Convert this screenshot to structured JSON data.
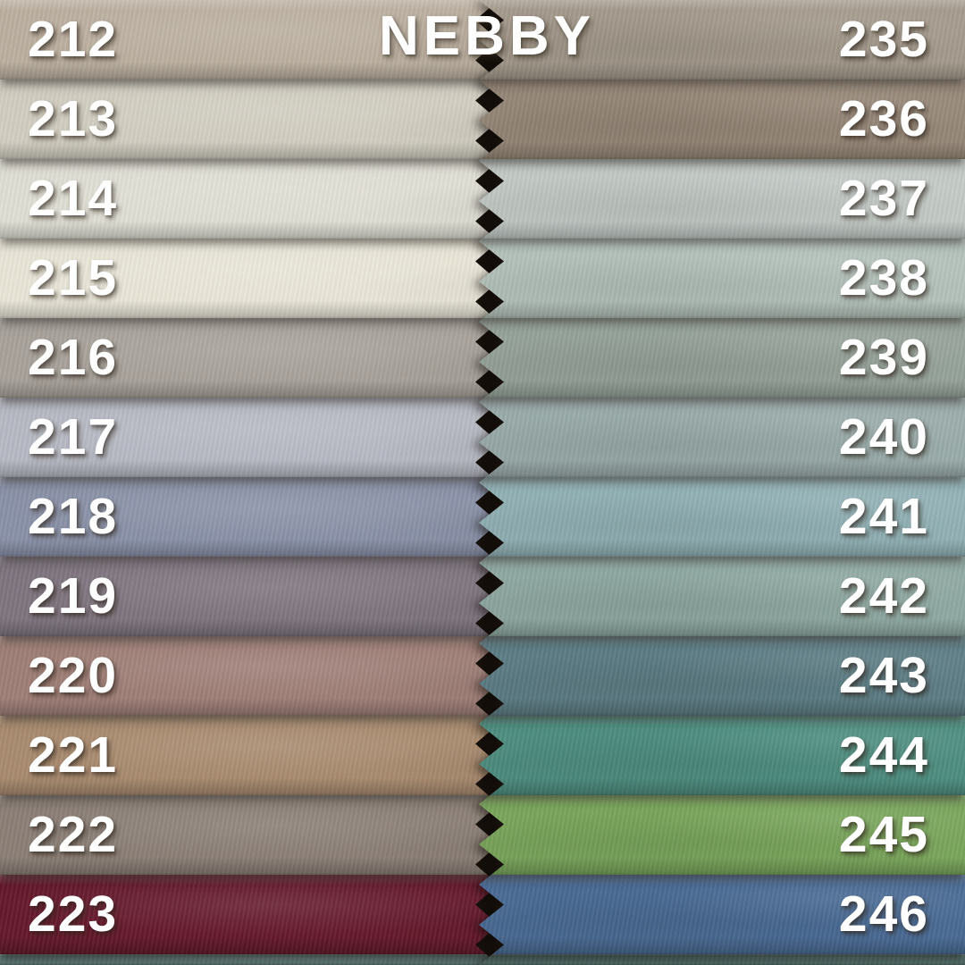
{
  "title": "NEBBY",
  "text_color": "#ffffff",
  "gap_shadow_color": "#140f0b",
  "columns": {
    "left": {
      "side": "left",
      "swatches": [
        {
          "number": "212",
          "color": "#bcb0a0"
        },
        {
          "number": "213",
          "color": "#d2cec1"
        },
        {
          "number": "214",
          "color": "#e0dfd5"
        },
        {
          "number": "215",
          "color": "#e9e6d8"
        },
        {
          "number": "216",
          "color": "#a8a29b"
        },
        {
          "number": "217",
          "color": "#b7bac4"
        },
        {
          "number": "218",
          "color": "#8a92a8"
        },
        {
          "number": "219",
          "color": "#7f7580"
        },
        {
          "number": "220",
          "color": "#9f7f77"
        },
        {
          "number": "221",
          "color": "#a98b6f"
        },
        {
          "number": "222",
          "color": "#8b7f76"
        },
        {
          "number": "223",
          "color": "#651a2c"
        }
      ],
      "bottom_sliver_color": "#5e7b78"
    },
    "right": {
      "side": "right",
      "swatches": [
        {
          "number": "235",
          "color": "#a49a8c"
        },
        {
          "number": "236",
          "color": "#968777"
        },
        {
          "number": "237",
          "color": "#c3cac6"
        },
        {
          "number": "238",
          "color": "#b4c2bb"
        },
        {
          "number": "239",
          "color": "#96a39a"
        },
        {
          "number": "240",
          "color": "#9aacaa"
        },
        {
          "number": "241",
          "color": "#92b2b6"
        },
        {
          "number": "242",
          "color": "#8fa9a2"
        },
        {
          "number": "243",
          "color": "#5d7d85"
        },
        {
          "number": "244",
          "color": "#4e8e81"
        },
        {
          "number": "245",
          "color": "#7aa65c"
        },
        {
          "number": "246",
          "color": "#4a6b95"
        }
      ],
      "bottom_sliver_color": "#53716c"
    }
  }
}
